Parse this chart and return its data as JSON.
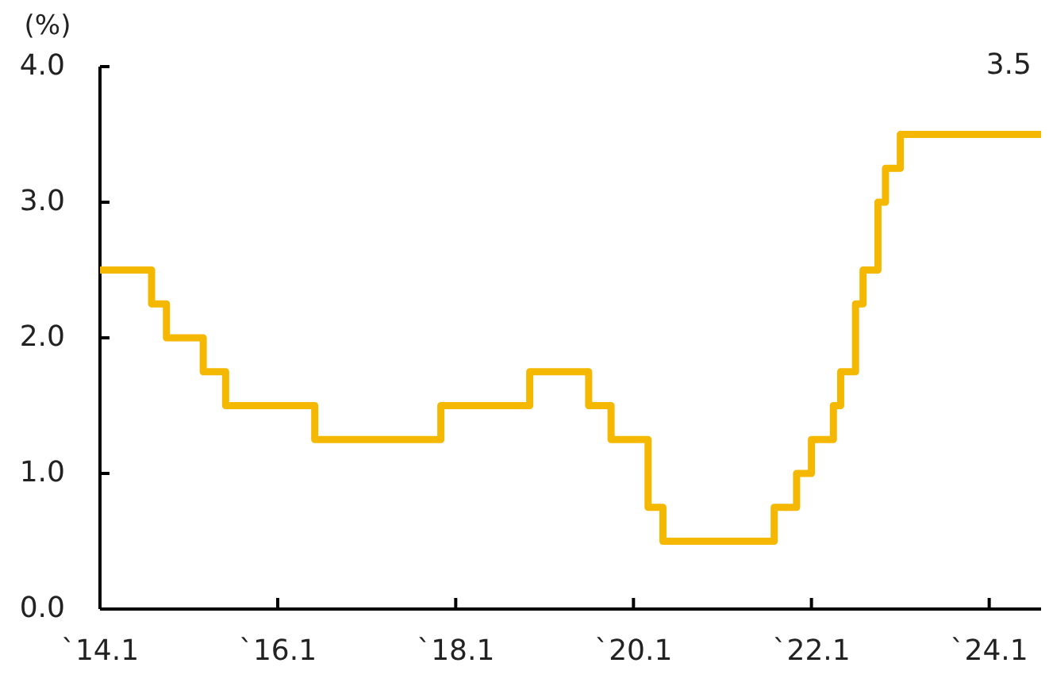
{
  "chart_data": {
    "type": "step",
    "ylabel": "(%)",
    "x": [
      "2014-01",
      "2014-08",
      "2014-10",
      "2015-03",
      "2015-06",
      "2016-06",
      "2017-11",
      "2018-11",
      "2019-07",
      "2019-10",
      "2020-03",
      "2020-05",
      "2021-08",
      "2021-11",
      "2022-01",
      "2022-04",
      "2022-05",
      "2022-07",
      "2022-08",
      "2022-10",
      "2022-11",
      "2023-01",
      "2024-08"
    ],
    "series": [
      {
        "color": "#f5b800",
        "values": [
          2.5,
          2.25,
          2.0,
          1.75,
          1.5,
          1.25,
          1.5,
          1.75,
          1.5,
          1.25,
          0.75,
          0.5,
          0.75,
          1.0,
          1.25,
          1.5,
          1.75,
          2.25,
          2.5,
          3.0,
          3.25,
          3.5,
          3.5
        ]
      }
    ],
    "xlim": [
      "2014-01",
      "2024-08"
    ],
    "xticks": [
      {
        "value": "2014-01",
        "label": "`14.1"
      },
      {
        "value": "2016-01",
        "label": "`16.1"
      },
      {
        "value": "2018-01",
        "label": "`18.1"
      },
      {
        "value": "2020-01",
        "label": "`20.1"
      },
      {
        "value": "2022-01",
        "label": "`22.1"
      },
      {
        "value": "2024-01",
        "label": "`24.1"
      }
    ],
    "ylim": [
      0,
      4
    ],
    "yticks": [
      {
        "value": 0,
        "label": "0.0"
      },
      {
        "value": 1,
        "label": "1.0"
      },
      {
        "value": 2,
        "label": "2.0"
      },
      {
        "value": 3,
        "label": "3.0"
      },
      {
        "value": 4,
        "label": "4.0"
      }
    ],
    "annotations": [
      {
        "text": "3.5",
        "x": "2024-08",
        "y": 3.5
      }
    ]
  }
}
